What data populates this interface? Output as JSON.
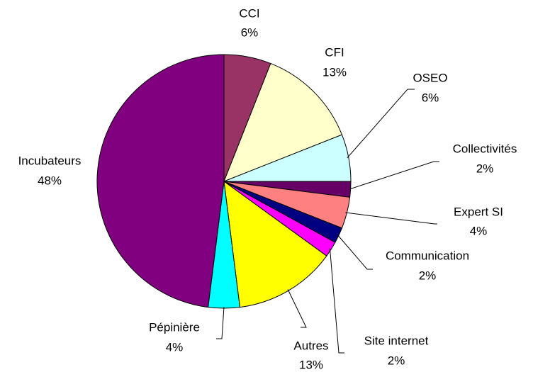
{
  "chart_data": {
    "type": "pie",
    "categories": [
      "CCI",
      "CFI",
      "OSEO",
      "Collectivités",
      "Expert SI",
      "Communication",
      "Site internet",
      "Autres",
      "Pépinière",
      "Incubateurs"
    ],
    "values": [
      6,
      13,
      6,
      2,
      4,
      2,
      2,
      13,
      4,
      48
    ],
    "value_labels": [
      "6%",
      "13%",
      "6%",
      "2%",
      "4%",
      "2%",
      "2%",
      "13%",
      "4%",
      "48%"
    ],
    "colors": [
      "#993366",
      "#ffffcc",
      "#ccffff",
      "#660066",
      "#ff8080",
      "#000080",
      "#ff00ff",
      "#ffff00",
      "#00ffff",
      "#800080"
    ]
  }
}
